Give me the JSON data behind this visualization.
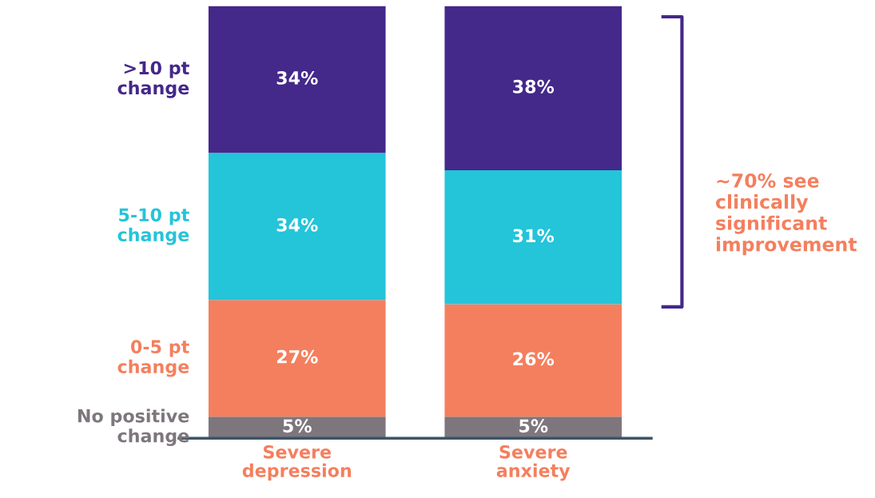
{
  "chart_data": {
    "type": "bar",
    "stacked": true,
    "grid": false,
    "legend": false,
    "categories": [
      "Severe depression",
      "Severe anxiety"
    ],
    "series": [
      {
        "name": "No positive change",
        "color": "#7d777d",
        "values": [
          5,
          5
        ],
        "value_labels": [
          "5%",
          "5%"
        ]
      },
      {
        "name": "0-5 pt change",
        "color": "#f47f5e",
        "values": [
          27,
          26
        ],
        "value_labels": [
          "27%",
          "26%"
        ]
      },
      {
        "name": "5-10 pt change",
        "color": "#24c4d9",
        "values": [
          34,
          31
        ],
        "value_labels": [
          "34%",
          "31%"
        ]
      },
      {
        "name": ">10 pt change",
        "color": "#44288a",
        "values": [
          34,
          38
        ],
        "value_labels": [
          "34%",
          "38%"
        ]
      }
    ],
    "annotations": [
      "~70% see clinically significant improvement"
    ]
  }
}
